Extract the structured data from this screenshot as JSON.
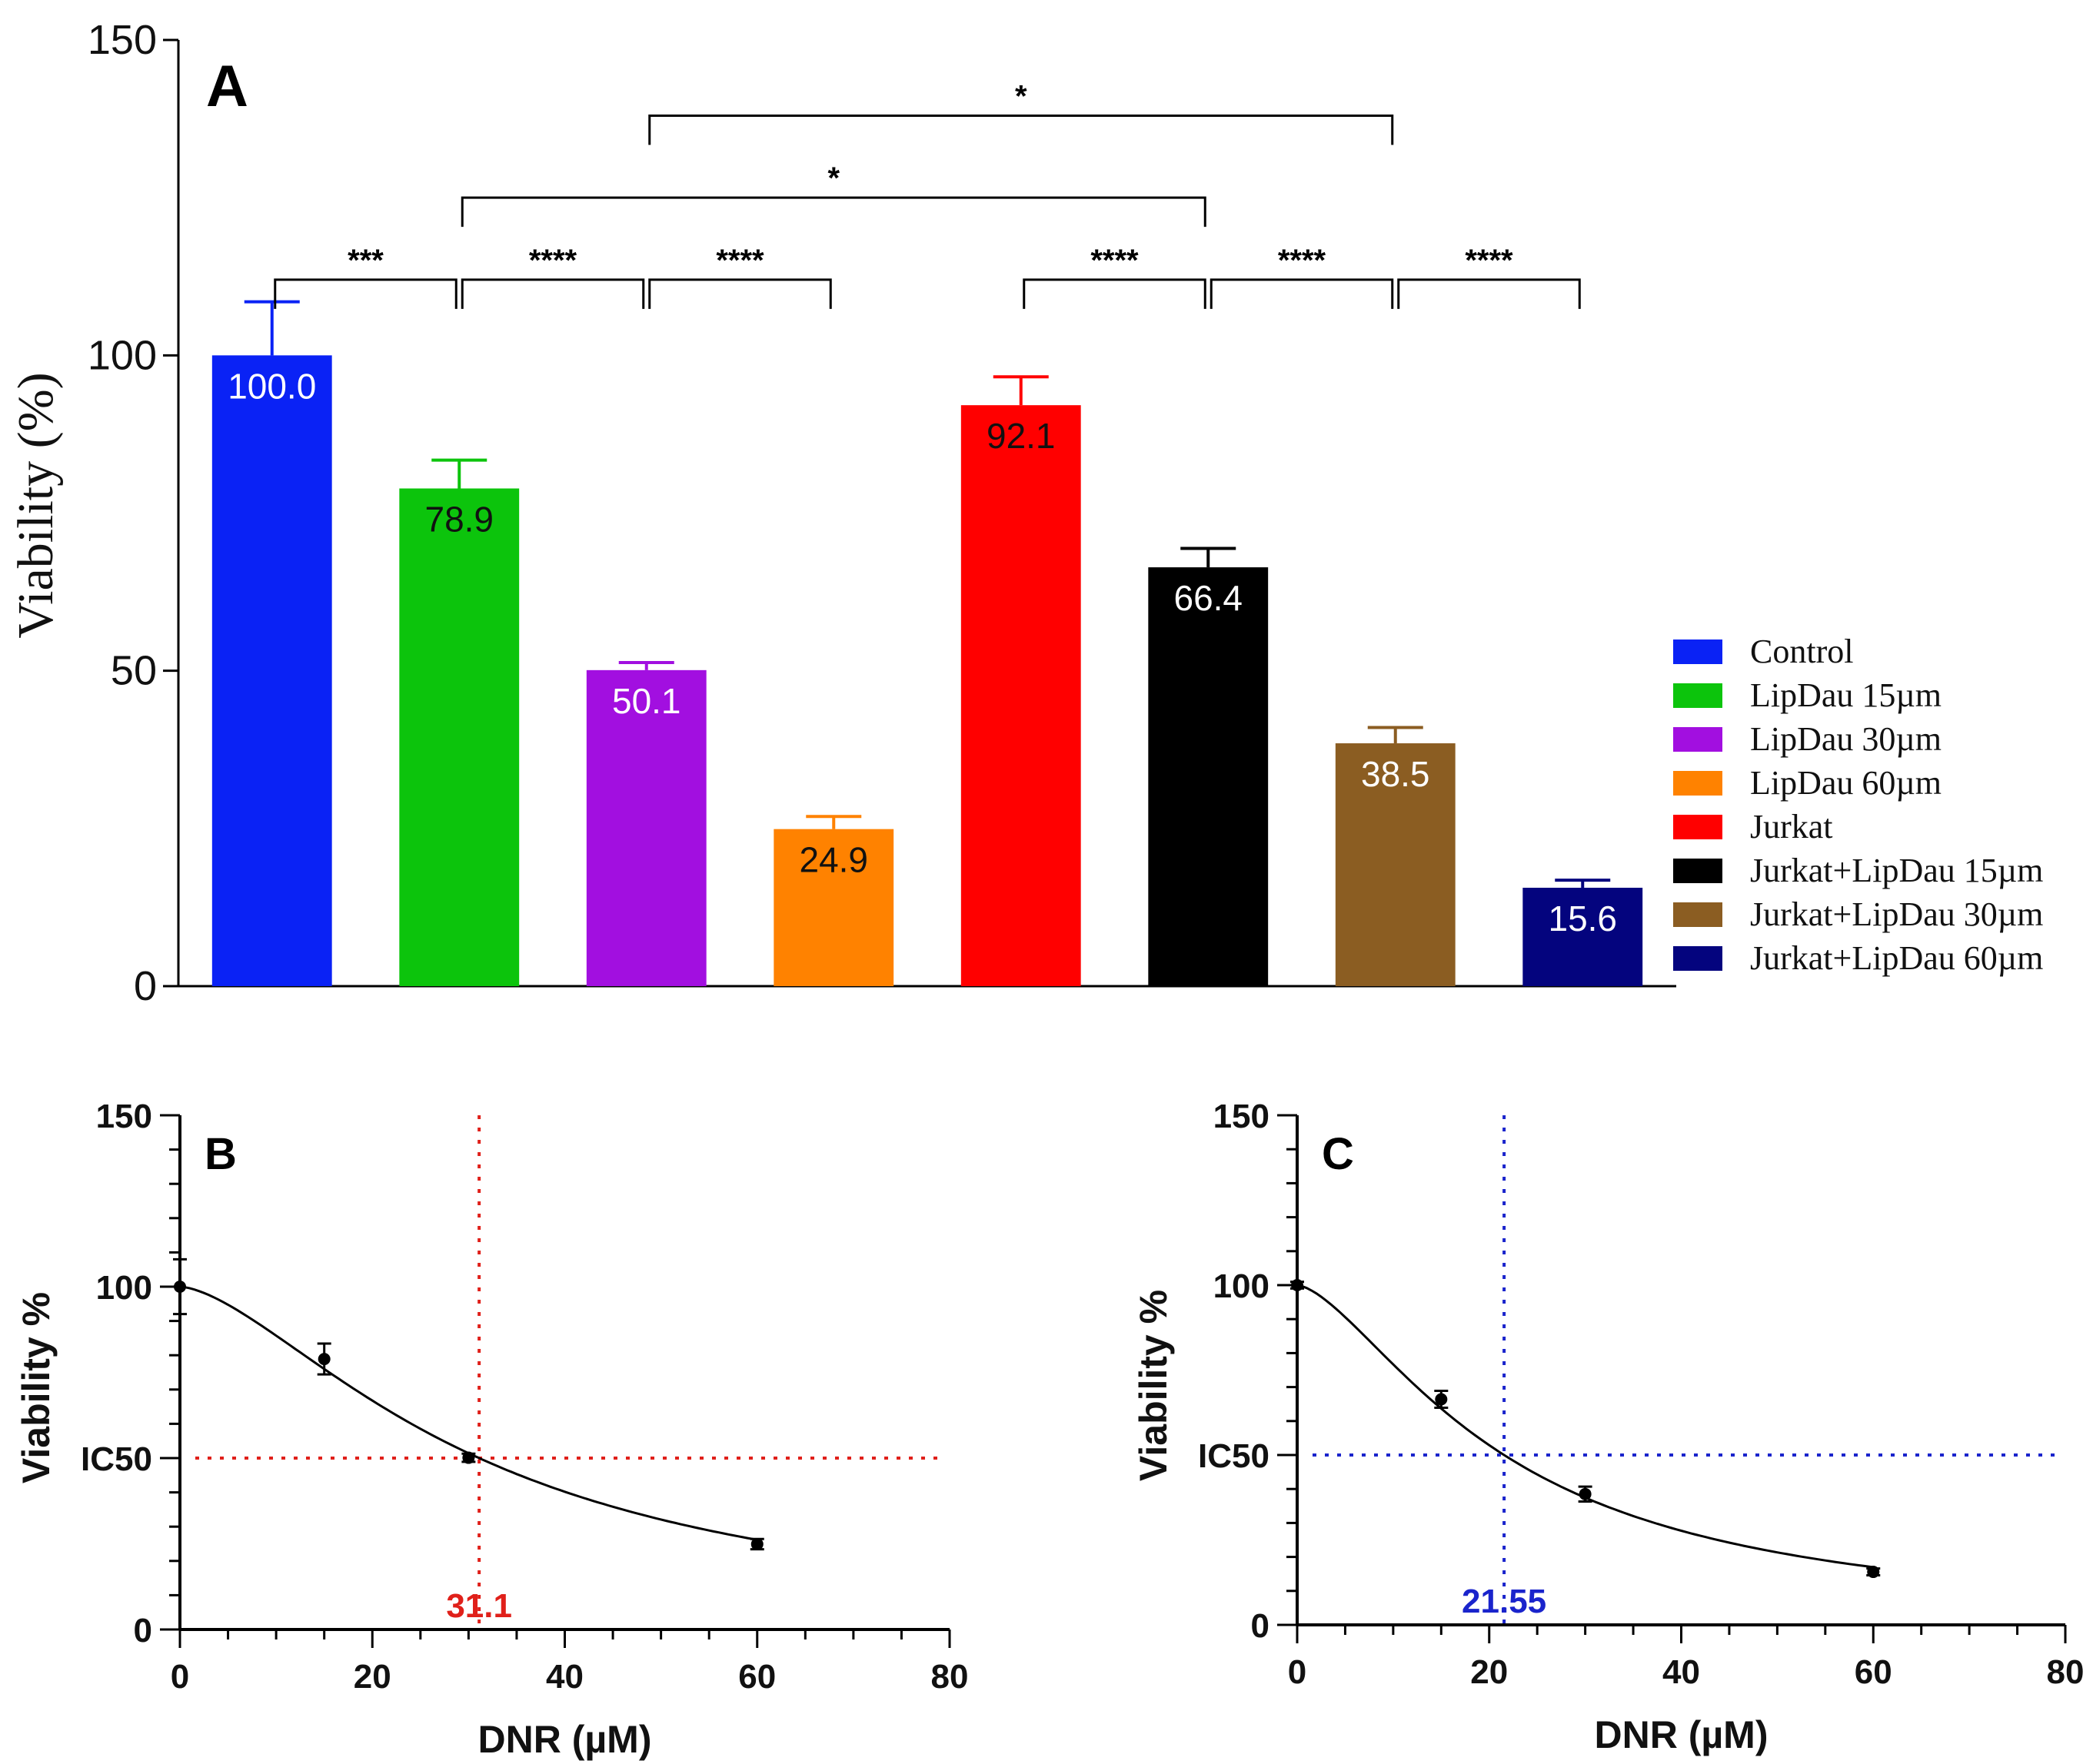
{
  "chart_data": [
    {
      "id": "A",
      "type": "bar",
      "panel_label": "A",
      "title": "",
      "xlabel": "",
      "ylabel": "Viability (%)",
      "ylim": [
        0,
        150
      ],
      "yticks": [
        0,
        50,
        100,
        150
      ],
      "categories": [
        "Control",
        "LipDau 15µm",
        "LipDau 30µm",
        "LipDau 60µm",
        "Jurkat",
        "Jurkat+LipDau 15µm",
        "Jurkat+LipDau 30µm",
        "Jurkat+LipDau 60µm"
      ],
      "values": [
        100.0,
        78.9,
        50.1,
        24.9,
        92.1,
        66.4,
        38.5,
        15.6
      ],
      "value_labels": [
        "100.0",
        "78.9",
        "50.1",
        "24.9",
        "92.1",
        "66.4",
        "38.5",
        "15.6"
      ],
      "errors": [
        8.5,
        4.5,
        1.2,
        2.0,
        4.5,
        3.0,
        2.5,
        1.2
      ],
      "colors": [
        "#0a22f5",
        "#0cc40c",
        "#a20fe0",
        "#ff8200",
        "#ff0000",
        "#000000",
        "#8b5d22",
        "#04047e"
      ],
      "label_colors": [
        "#ffffff",
        "#111111",
        "#ffffff",
        "#111111",
        "#111111",
        "#ffffff",
        "#ffffff",
        "#ffffff"
      ],
      "legend": {
        "position": "right",
        "entries": [
          "Control",
          "LipDau 15µm",
          "LipDau 30µm",
          "LipDau 60µm",
          "Jurkat",
          "Jurkat+LipDau 15µm",
          "Jurkat+LipDau 30µm",
          "Jurkat+LipDau 60µm"
        ]
      },
      "significance": [
        {
          "from": 0,
          "to": 1,
          "level": 112,
          "label": "***"
        },
        {
          "from": 1,
          "to": 2,
          "level": 112,
          "label": "****"
        },
        {
          "from": 2,
          "to": 3,
          "level": 112,
          "label": "****"
        },
        {
          "from": 4,
          "to": 5,
          "level": 112,
          "label": "****"
        },
        {
          "from": 5,
          "to": 6,
          "level": 112,
          "label": "****"
        },
        {
          "from": 6,
          "to": 7,
          "level": 112,
          "label": "****"
        },
        {
          "from": 1,
          "to": 5,
          "level": 125,
          "label": "*"
        },
        {
          "from": 2,
          "to": 6,
          "level": 138,
          "label": "*"
        }
      ]
    },
    {
      "id": "B",
      "type": "line",
      "panel_label": "B",
      "xlabel": "DNR (µM)",
      "ylabel": "Viability %",
      "xlim": [
        0,
        80
      ],
      "ylim": [
        0,
        150
      ],
      "xticks": [
        0,
        20,
        40,
        60,
        80
      ],
      "ytick_labels": [
        {
          "value": 0,
          "label": "0"
        },
        {
          "value": 50,
          "label": "IC50"
        },
        {
          "value": 100,
          "label": "100"
        },
        {
          "value": 150,
          "label": "150"
        }
      ],
      "points": [
        {
          "x": 0,
          "y": 100,
          "err": 8
        },
        {
          "x": 15,
          "y": 78.9,
          "err": 4.5
        },
        {
          "x": 30,
          "y": 50.1,
          "err": 1.2
        },
        {
          "x": 60,
          "y": 24.9,
          "err": 1.5
        }
      ],
      "fit": {
        "top": 100,
        "ic50": 31.1,
        "hill": 1.58
      },
      "ic50": 31.1,
      "ic50_label": "31.1",
      "guide_color": "#e0201a"
    },
    {
      "id": "C",
      "type": "line",
      "panel_label": "C",
      "xlabel": "DNR (µM)",
      "ylabel": "Viability %",
      "xlim": [
        0,
        80
      ],
      "ylim": [
        0,
        150
      ],
      "xticks": [
        0,
        20,
        40,
        60,
        80
      ],
      "ytick_labels": [
        {
          "value": 0,
          "label": "0"
        },
        {
          "value": 50,
          "label": "IC50"
        },
        {
          "value": 100,
          "label": "100"
        },
        {
          "value": 150,
          "label": "150"
        }
      ],
      "points": [
        {
          "x": 0,
          "y": 100,
          "err": 1
        },
        {
          "x": 15,
          "y": 66.4,
          "err": 2.5
        },
        {
          "x": 30,
          "y": 38.5,
          "err": 2.2
        },
        {
          "x": 60,
          "y": 15.6,
          "err": 1
        }
      ],
      "fit": {
        "top": 100,
        "ic50": 21.55,
        "hill": 1.55
      },
      "ic50": 21.55,
      "ic50_label": "21.55",
      "guide_color": "#1a24cc"
    }
  ]
}
